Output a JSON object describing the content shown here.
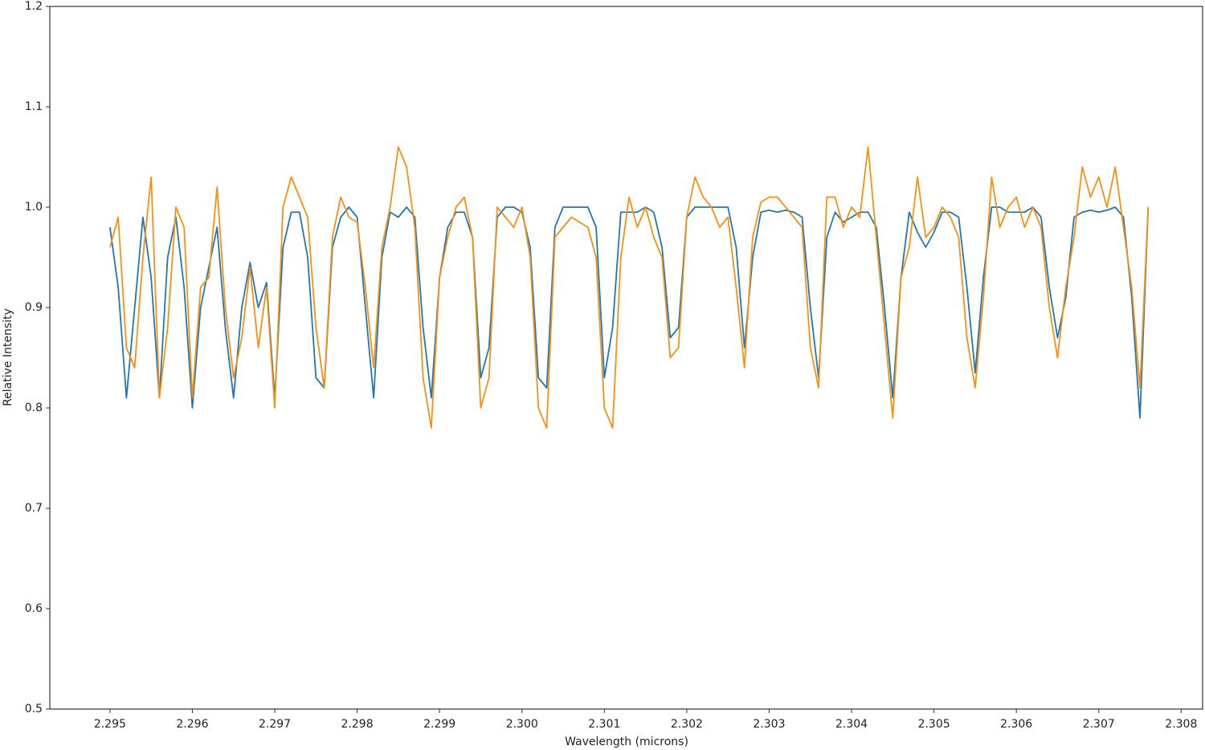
{
  "chart_data": {
    "type": "line",
    "xlabel": "Wavelength (microns)",
    "ylabel": "Relative Intensity",
    "xlim": [
      2.29427,
      2.30826
    ],
    "ylim": [
      0.5,
      1.2
    ],
    "xticks": [
      2.295,
      2.296,
      2.297,
      2.298,
      2.299,
      {
        "value": 2.3,
        "label": "2.300"
      },
      2.301,
      2.302,
      2.303,
      2.304,
      2.305,
      2.306,
      2.307,
      2.308
    ],
    "yticks": [
      0.5,
      0.6,
      0.7,
      0.8,
      0.9,
      {
        "value": 1,
        "label": "1.0"
      },
      1.1,
      1.2
    ],
    "grid": false,
    "x": [
      2.295,
      2.2951,
      2.2952,
      2.2953,
      2.2954,
      2.2955,
      2.2956,
      2.2957,
      2.2958,
      2.2959,
      2.296,
      2.2961,
      2.2962,
      2.2963,
      2.2964,
      2.2965,
      2.2966,
      2.2967,
      2.2968,
      2.2969,
      2.297,
      2.2971,
      2.2972,
      2.2973,
      2.2974,
      2.2975,
      2.2976,
      2.2977,
      2.2978,
      2.2979,
      2.298,
      2.2981,
      2.2982,
      2.2983,
      2.2984,
      2.2985,
      2.2986,
      2.2987,
      2.2988,
      2.2989,
      2.299,
      2.2991,
      2.2992,
      2.2993,
      2.2994,
      2.2995,
      2.2996,
      2.2997,
      2.2998,
      2.2999,
      2.3,
      2.3001,
      2.3002,
      2.3003,
      2.3004,
      2.3005,
      2.3006,
      2.3007,
      2.3008,
      2.3009,
      2.301,
      2.3011,
      2.3012,
      2.3013,
      2.3014,
      2.3015,
      2.3016,
      2.3017,
      2.3018,
      2.3019,
      2.302,
      2.3021,
      2.3022,
      2.3023,
      2.3024,
      2.3025,
      2.3026,
      2.3027,
      2.3028,
      2.3029,
      2.303,
      2.3031,
      2.3032,
      2.3033,
      2.3034,
      2.3035,
      2.3036,
      2.3037,
      2.3038,
      2.3039,
      2.304,
      2.3041,
      2.3042,
      2.3043,
      2.3044,
      2.3045,
      2.3046,
      2.3047,
      2.3048,
      2.3049,
      2.305,
      2.3051,
      2.3052,
      2.3053,
      2.3054,
      2.3055,
      2.3056,
      2.3057,
      2.3058,
      2.3059,
      2.306,
      2.3061,
      2.3062,
      2.3063,
      2.3064,
      2.3065,
      2.3066,
      2.3067,
      2.3068,
      2.3069,
      2.307,
      2.3071,
      2.3072,
      2.3073,
      2.3074,
      2.3075,
      2.3076
    ],
    "series": [
      {
        "color": "#1f77b4",
        "values": [
          0.98,
          0.92,
          0.81,
          0.9,
          0.99,
          0.93,
          0.81,
          0.95,
          0.99,
          0.92,
          0.8,
          0.9,
          0.94,
          0.98,
          0.88,
          0.81,
          0.9,
          0.945,
          0.9,
          0.925,
          0.81,
          0.96,
          0.995,
          0.995,
          0.95,
          0.83,
          0.82,
          0.96,
          0.99,
          1.0,
          0.99,
          0.9,
          0.81,
          0.95,
          0.995,
          0.99,
          1.0,
          0.99,
          0.88,
          0.81,
          0.93,
          0.98,
          0.995,
          0.995,
          0.97,
          0.83,
          0.86,
          0.99,
          1.0,
          1.0,
          0.995,
          0.96,
          0.83,
          0.82,
          0.98,
          1.0,
          1.0,
          1.0,
          1.0,
          0.98,
          0.83,
          0.88,
          0.995,
          0.995,
          0.995,
          1.0,
          0.995,
          0.96,
          0.87,
          0.88,
          0.99,
          1.0,
          1.0,
          1.0,
          1.0,
          1.0,
          0.96,
          0.86,
          0.95,
          0.995,
          0.997,
          0.995,
          0.997,
          0.995,
          0.99,
          0.9,
          0.83,
          0.97,
          0.995,
          0.985,
          0.99,
          0.995,
          0.995,
          0.98,
          0.9,
          0.81,
          0.93,
          0.995,
          0.975,
          0.96,
          0.975,
          0.995,
          0.995,
          0.99,
          0.92,
          0.835,
          0.93,
          1.0,
          1.0,
          0.995,
          0.995,
          0.995,
          1.0,
          0.99,
          0.92,
          0.87,
          0.91,
          0.99,
          0.995,
          0.997,
          0.995,
          0.997,
          1.0,
          0.99,
          0.91,
          0.79,
          1.0
        ]
      },
      {
        "color": "#f7900f",
        "values": [
          0.96,
          0.99,
          0.86,
          0.84,
          0.95,
          1.03,
          0.81,
          0.88,
          1.0,
          0.98,
          0.81,
          0.92,
          0.93,
          1.02,
          0.9,
          0.83,
          0.87,
          0.94,
          0.86,
          0.92,
          0.8,
          1.0,
          1.03,
          1.01,
          0.99,
          0.88,
          0.82,
          0.97,
          1.01,
          0.99,
          0.985,
          0.92,
          0.84,
          0.96,
          1.0,
          1.06,
          1.04,
          0.98,
          0.83,
          0.78,
          0.93,
          0.97,
          1.0,
          1.01,
          0.97,
          0.8,
          0.83,
          1.0,
          0.99,
          0.98,
          1.0,
          0.95,
          0.8,
          0.78,
          0.97,
          0.98,
          0.99,
          0.985,
          0.98,
          0.95,
          0.8,
          0.78,
          0.95,
          1.01,
          0.98,
          1.0,
          0.97,
          0.95,
          0.85,
          0.86,
          0.99,
          1.03,
          1.01,
          1.0,
          0.98,
          0.99,
          0.92,
          0.84,
          0.97,
          1.005,
          1.01,
          1.01,
          1.0,
          0.99,
          0.98,
          0.86,
          0.82,
          1.01,
          1.01,
          0.98,
          1.0,
          0.99,
          1.06,
          0.97,
          0.88,
          0.79,
          0.93,
          0.96,
          1.03,
          0.97,
          0.98,
          1.0,
          0.99,
          0.97,
          0.87,
          0.82,
          0.91,
          1.03,
          0.98,
          1.0,
          1.01,
          0.98,
          1.0,
          0.98,
          0.9,
          0.85,
          0.92,
          0.97,
          1.04,
          1.01,
          1.03,
          1.0,
          1.04,
          0.98,
          0.92,
          0.82,
          1.0
        ]
      }
    ]
  }
}
